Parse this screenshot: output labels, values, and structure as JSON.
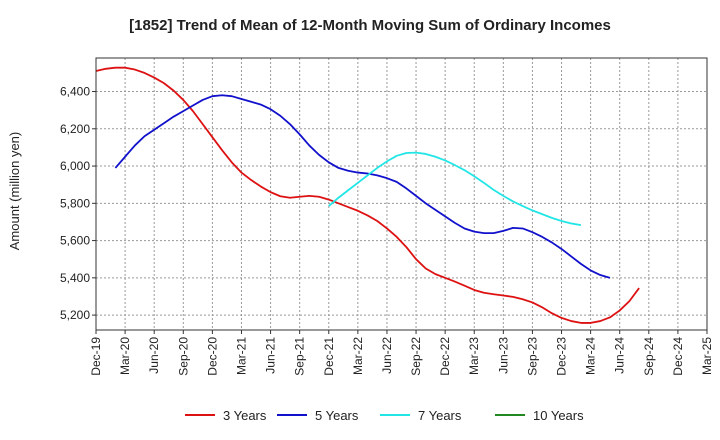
{
  "chart_data": {
    "type": "line",
    "title": "[1852]  Trend of Mean of 12-Month Moving Sum of Ordinary Incomes",
    "xlabel": "",
    "ylabel": "Amount (million yen)",
    "ylim": [
      5120,
      6580
    ],
    "yticks": [
      5200,
      5400,
      5600,
      5800,
      6000,
      6200,
      6400
    ],
    "ytick_labels": [
      "5,200",
      "5,400",
      "5,600",
      "5,800",
      "6,000",
      "6,200",
      "6,400"
    ],
    "x_start": "Dec-19",
    "xtick_labels": [
      "Dec-19",
      "Mar-20",
      "Jun-20",
      "Sep-20",
      "Dec-20",
      "Mar-21",
      "Jun-21",
      "Sep-21",
      "Dec-21",
      "Mar-22",
      "Jun-22",
      "Sep-22",
      "Dec-22",
      "Mar-23",
      "Jun-23",
      "Sep-23",
      "Dec-23",
      "Mar-24",
      "Jun-24",
      "Sep-24",
      "Dec-24",
      "Mar-25"
    ],
    "grid": true,
    "legend_position": "bottom",
    "series": [
      {
        "name": "3 Years",
        "color": "#dd1111",
        "points": [
          [
            0,
            6510
          ],
          [
            1,
            6522
          ],
          [
            2,
            6528
          ],
          [
            3,
            6528
          ],
          [
            4,
            6518
          ],
          [
            5,
            6500
          ],
          [
            6,
            6475
          ],
          [
            7,
            6445
          ],
          [
            8,
            6405
          ],
          [
            9,
            6355
          ],
          [
            10,
            6295
          ],
          [
            11,
            6225
          ],
          [
            12,
            6155
          ],
          [
            13,
            6085
          ],
          [
            14,
            6020
          ],
          [
            15,
            5965
          ],
          [
            16,
            5925
          ],
          [
            17,
            5890
          ],
          [
            18,
            5860
          ],
          [
            19,
            5838
          ],
          [
            20,
            5830
          ],
          [
            21,
            5835
          ],
          [
            22,
            5840
          ],
          [
            23,
            5835
          ],
          [
            24,
            5820
          ],
          [
            25,
            5800
          ],
          [
            26,
            5780
          ],
          [
            27,
            5760
          ],
          [
            28,
            5735
          ],
          [
            29,
            5705
          ],
          [
            30,
            5665
          ],
          [
            31,
            5620
          ],
          [
            32,
            5565
          ],
          [
            33,
            5500
          ],
          [
            34,
            5450
          ],
          [
            35,
            5420
          ],
          [
            36,
            5400
          ],
          [
            37,
            5380
          ],
          [
            38,
            5358
          ],
          [
            39,
            5335
          ],
          [
            40,
            5320
          ],
          [
            41,
            5312
          ],
          [
            42,
            5305
          ],
          [
            43,
            5298
          ],
          [
            44,
            5285
          ],
          [
            45,
            5268
          ],
          [
            46,
            5242
          ],
          [
            47,
            5210
          ],
          [
            48,
            5185
          ],
          [
            49,
            5168
          ],
          [
            50,
            5158
          ],
          [
            51,
            5158
          ],
          [
            52,
            5168
          ],
          [
            53,
            5188
          ],
          [
            54,
            5225
          ],
          [
            55,
            5275
          ],
          [
            56,
            5345
          ]
        ]
      },
      {
        "name": "5 Years",
        "color": "#1111cc",
        "points": [
          [
            2,
            5990
          ],
          [
            3,
            6050
          ],
          [
            4,
            6110
          ],
          [
            5,
            6160
          ],
          [
            6,
            6195
          ],
          [
            7,
            6230
          ],
          [
            8,
            6265
          ],
          [
            9,
            6295
          ],
          [
            10,
            6325
          ],
          [
            11,
            6355
          ],
          [
            12,
            6375
          ],
          [
            13,
            6380
          ],
          [
            14,
            6375
          ],
          [
            15,
            6360
          ],
          [
            16,
            6345
          ],
          [
            17,
            6330
          ],
          [
            18,
            6305
          ],
          [
            19,
            6270
          ],
          [
            20,
            6225
          ],
          [
            21,
            6170
          ],
          [
            22,
            6110
          ],
          [
            23,
            6060
          ],
          [
            24,
            6020
          ],
          [
            25,
            5990
          ],
          [
            26,
            5975
          ],
          [
            27,
            5965
          ],
          [
            28,
            5960
          ],
          [
            29,
            5950
          ],
          [
            30,
            5935
          ],
          [
            31,
            5915
          ],
          [
            32,
            5880
          ],
          [
            33,
            5840
          ],
          [
            34,
            5800
          ],
          [
            35,
            5765
          ],
          [
            36,
            5730
          ],
          [
            37,
            5695
          ],
          [
            38,
            5665
          ],
          [
            39,
            5648
          ],
          [
            40,
            5640
          ],
          [
            41,
            5640
          ],
          [
            42,
            5652
          ],
          [
            43,
            5668
          ],
          [
            44,
            5665
          ],
          [
            45,
            5645
          ],
          [
            46,
            5620
          ],
          [
            47,
            5590
          ],
          [
            48,
            5555
          ],
          [
            49,
            5515
          ],
          [
            50,
            5475
          ],
          [
            51,
            5440
          ],
          [
            52,
            5415
          ],
          [
            53,
            5400
          ]
        ]
      },
      {
        "name": "7 Years",
        "color": "#22e6e6",
        "points": [
          [
            24,
            5785
          ],
          [
            25,
            5830
          ],
          [
            26,
            5870
          ],
          [
            27,
            5910
          ],
          [
            28,
            5950
          ],
          [
            29,
            5990
          ],
          [
            30,
            6025
          ],
          [
            31,
            6055
          ],
          [
            32,
            6070
          ],
          [
            33,
            6072
          ],
          [
            34,
            6065
          ],
          [
            35,
            6050
          ],
          [
            36,
            6030
          ],
          [
            37,
            6005
          ],
          [
            38,
            5978
          ],
          [
            39,
            5945
          ],
          [
            40,
            5910
          ],
          [
            41,
            5872
          ],
          [
            42,
            5840
          ],
          [
            43,
            5810
          ],
          [
            44,
            5785
          ],
          [
            45,
            5762
          ],
          [
            46,
            5742
          ],
          [
            47,
            5722
          ],
          [
            48,
            5705
          ],
          [
            49,
            5692
          ],
          [
            50,
            5683
          ]
        ]
      },
      {
        "name": "10 Years",
        "color": "#228822",
        "points": []
      }
    ]
  }
}
